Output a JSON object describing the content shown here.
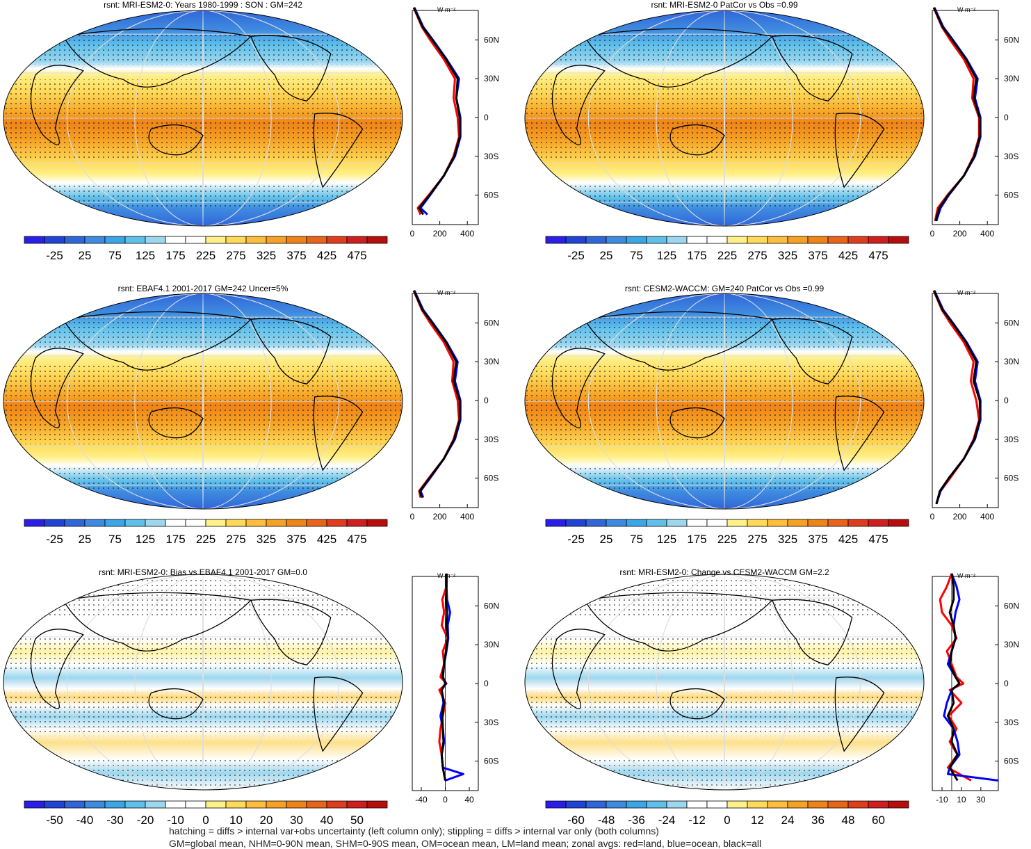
{
  "chart_data": [
    {
      "type": "heatmap",
      "title": "rsnt: MRI-ESM2-0: Years 1980-1999 : SON : GM=242",
      "colorbar_ticks": [
        "-25",
        "25",
        "75",
        "125",
        "175",
        "225",
        "275",
        "325",
        "375",
        "425",
        "475"
      ],
      "zonal_profile": {
        "unit": "W m-2",
        "x_ticks": [
          "0",
          "200",
          "400"
        ],
        "xlim": [
          0,
          480
        ],
        "y_ticks": [
          "60N",
          "30N",
          "0",
          "30S",
          "60S"
        ],
        "series": [
          {
            "color": "red",
            "lat": [
              85,
              70,
              60,
              45,
              30,
              15,
              0,
              -15,
              -30,
              -45,
              -60,
              -70,
              -75
            ],
            "values": [
              10,
              70,
              130,
              230,
              310,
              300,
              330,
              340,
              300,
              230,
              120,
              40,
              60
            ]
          },
          {
            "color": "blue",
            "lat": [
              85,
              70,
              60,
              45,
              30,
              15,
              0,
              -15,
              -30,
              -45,
              -60,
              -70,
              -75
            ],
            "values": [
              15,
              80,
              150,
              250,
              340,
              320,
              350,
              350,
              310,
              230,
              130,
              60,
              110
            ]
          },
          {
            "color": "black",
            "lat": [
              85,
              70,
              60,
              45,
              30,
              15,
              0,
              -15,
              -30,
              -45,
              -60,
              -70,
              -75
            ],
            "values": [
              12,
              75,
              145,
              245,
              330,
              320,
              345,
              345,
              305,
              230,
              125,
              50,
              80
            ]
          }
        ]
      }
    },
    {
      "type": "heatmap",
      "title": "rsnt: MRI-ESM2-0 PatCor vs Obs =0.99",
      "colorbar_ticks": [
        "-25",
        "25",
        "75",
        "125",
        "175",
        "225",
        "275",
        "325",
        "375",
        "425",
        "475"
      ],
      "zonal_profile": {
        "unit": "W m-2",
        "x_ticks": [
          "0",
          "200",
          "400"
        ],
        "xlim": [
          0,
          480
        ],
        "y_ticks": [
          "60N",
          "30N",
          "0",
          "30S",
          "60S"
        ],
        "series": [
          {
            "color": "red",
            "lat": [
              85,
              70,
              60,
              45,
              30,
              15,
              0,
              -15,
              -30,
              -45,
              -60,
              -70,
              -80
            ],
            "values": [
              10,
              70,
              130,
              230,
              300,
              290,
              340,
              340,
              300,
              230,
              110,
              40,
              20
            ]
          },
          {
            "color": "blue",
            "lat": [
              85,
              70,
              60,
              45,
              30,
              15,
              0,
              -15,
              -30,
              -45,
              -60,
              -70,
              -80
            ],
            "values": [
              15,
              80,
              150,
              250,
              330,
              310,
              350,
              350,
              310,
              230,
              120,
              60,
              30
            ]
          },
          {
            "color": "black",
            "lat": [
              85,
              70,
              60,
              45,
              30,
              15,
              0,
              -15,
              -30,
              -45,
              -60,
              -70,
              -80
            ],
            "values": [
              12,
              75,
              145,
              245,
              320,
              300,
              345,
              345,
              305,
              230,
              115,
              50,
              25
            ]
          }
        ]
      }
    },
    {
      "type": "heatmap",
      "title": "rsnt: EBAF4.1 2001-2017 GM=242 Uncer=5%",
      "colorbar_ticks": [
        "-25",
        "25",
        "75",
        "125",
        "175",
        "225",
        "275",
        "325",
        "375",
        "425",
        "475"
      ],
      "zonal_profile": {
        "unit": "W m-2",
        "x_ticks": [
          "0",
          "200",
          "400"
        ],
        "xlim": [
          0,
          480
        ],
        "y_ticks": [
          "60N",
          "30N",
          "0",
          "30S",
          "60S"
        ],
        "series": [
          {
            "color": "red",
            "lat": [
              85,
              70,
              60,
              45,
              30,
              15,
              0,
              -15,
              -30,
              -45,
              -60,
              -70,
              -75
            ],
            "values": [
              10,
              70,
              130,
              230,
              300,
              290,
              330,
              340,
              300,
              230,
              120,
              50,
              60
            ]
          },
          {
            "color": "blue",
            "lat": [
              85,
              70,
              60,
              45,
              30,
              15,
              0,
              -15,
              -30,
              -45,
              -60,
              -70,
              -75
            ],
            "values": [
              15,
              80,
              150,
              250,
              330,
              310,
              350,
              350,
              310,
              230,
              130,
              60,
              80
            ]
          },
          {
            "color": "black",
            "lat": [
              85,
              70,
              60,
              45,
              30,
              15,
              0,
              -15,
              -30,
              -45,
              -60,
              -70,
              -75
            ],
            "values": [
              12,
              75,
              145,
              245,
              320,
              300,
              345,
              345,
              305,
              230,
              125,
              55,
              70
            ]
          }
        ]
      }
    },
    {
      "type": "heatmap",
      "title": "rsnt: CESM2-WACCM: GM=240 PatCor vs Obs =0.99",
      "colorbar_ticks": [
        "-25",
        "25",
        "75",
        "125",
        "175",
        "225",
        "275",
        "325",
        "375",
        "425",
        "475"
      ],
      "zonal_profile": {
        "unit": "W m-2",
        "x_ticks": [
          "0",
          "200",
          "400"
        ],
        "xlim": [
          0,
          480
        ],
        "y_ticks": [
          "60N",
          "30N",
          "0",
          "30S",
          "60S"
        ],
        "series": [
          {
            "color": "red",
            "lat": [
              85,
              70,
              60,
              45,
              30,
              15,
              0,
              -15,
              -30,
              -45,
              -60,
              -70,
              -80
            ],
            "values": [
              10,
              70,
              130,
              230,
              300,
              280,
              320,
              340,
              300,
              230,
              130,
              60,
              30
            ]
          },
          {
            "color": "blue",
            "lat": [
              85,
              70,
              60,
              45,
              30,
              15,
              0,
              -15,
              -30,
              -45,
              -60,
              -70,
              -80
            ],
            "values": [
              15,
              80,
              150,
              250,
              330,
              310,
              350,
              350,
              310,
              230,
              120,
              60,
              30
            ]
          },
          {
            "color": "black",
            "lat": [
              85,
              70,
              60,
              45,
              30,
              15,
              0,
              -15,
              -30,
              -45,
              -60,
              -70,
              -80
            ],
            "values": [
              12,
              75,
              145,
              245,
              320,
              300,
              345,
              345,
              305,
              230,
              120,
              55,
              30
            ]
          }
        ]
      }
    },
    {
      "type": "heatmap",
      "title": "rsnt: MRI-ESM2-0: Bias vs EBAF4.1 2001-2017  GM=0.0",
      "colorbar_ticks": [
        "-50",
        "-40",
        "-30",
        "-20",
        "-10",
        "0",
        "10",
        "20",
        "30",
        "40",
        "50"
      ],
      "zonal_profile": {
        "unit": "W m-2",
        "x_ticks": [
          "-40",
          "0",
          "40"
        ],
        "xlim": [
          -55,
          55
        ],
        "y_ticks": [
          "60N",
          "30N",
          "0",
          "30S",
          "60S"
        ],
        "series": [
          {
            "color": "red",
            "lat": [
              85,
              75,
              65,
              55,
              45,
              35,
              25,
              15,
              5,
              0,
              -5,
              -15,
              -25,
              -35,
              -45,
              -55,
              -65,
              -75
            ],
            "values": [
              3,
              2,
              -5,
              -2,
              -6,
              4,
              -4,
              -2,
              -8,
              2,
              -10,
              0,
              -4,
              -8,
              -10,
              -6,
              -4,
              0
            ]
          },
          {
            "color": "blue",
            "lat": [
              85,
              75,
              65,
              55,
              45,
              35,
              25,
              15,
              5,
              0,
              -5,
              -15,
              -25,
              -35,
              -45,
              -55,
              -65,
              -70,
              -75
            ],
            "values": [
              1,
              2,
              3,
              8,
              4,
              5,
              2,
              -2,
              -4,
              0,
              -6,
              -3,
              -8,
              -4,
              -2,
              -6,
              -4,
              30,
              0
            ]
          },
          {
            "color": "black",
            "lat": [
              85,
              75,
              65,
              55,
              45,
              35,
              25,
              15,
              5,
              0,
              -5,
              -15,
              -25,
              -35,
              -45,
              -55,
              -65,
              -75
            ],
            "values": [
              2,
              2,
              1,
              3,
              2,
              4,
              1,
              -2,
              -4,
              1,
              -6,
              -2,
              -5,
              -4,
              -3,
              -6,
              -4,
              0
            ]
          }
        ]
      }
    },
    {
      "type": "heatmap",
      "title": "rsnt: MRI-ESM2-0: Change vs CESM2-WACCM GM=2.2",
      "colorbar_ticks": [
        "-60",
        "-48",
        "-36",
        "-24",
        "-12",
        "0",
        "12",
        "24",
        "36",
        "48",
        "60"
      ],
      "zonal_profile": {
        "unit": "W m-2",
        "x_ticks": [
          "-10",
          "10",
          "30"
        ],
        "xlim": [
          -20,
          48
        ],
        "y_ticks": [
          "60N",
          "30N",
          "0",
          "30S",
          "60S"
        ],
        "series": [
          {
            "color": "red",
            "lat": [
              85,
              75,
              65,
              55,
              45,
              35,
              25,
              15,
              5,
              0,
              -5,
              -15,
              -25,
              -35,
              -45,
              -55,
              -65,
              -75
            ],
            "values": [
              0,
              -5,
              -12,
              -10,
              0,
              5,
              -5,
              0,
              5,
              12,
              -2,
              10,
              -3,
              5,
              -2,
              6,
              -4,
              20
            ]
          },
          {
            "color": "blue",
            "lat": [
              85,
              75,
              65,
              55,
              45,
              35,
              25,
              15,
              5,
              0,
              -5,
              -15,
              -25,
              -35,
              -45,
              -55,
              -65,
              -70,
              -75
            ],
            "values": [
              0,
              5,
              8,
              4,
              2,
              4,
              0,
              -4,
              4,
              8,
              0,
              -5,
              -8,
              2,
              6,
              8,
              -2,
              -4,
              48
            ]
          },
          {
            "color": "black",
            "lat": [
              85,
              75,
              65,
              55,
              45,
              35,
              25,
              15,
              5,
              0,
              -5,
              -15,
              -25,
              -35,
              -45,
              -55,
              -65,
              -75
            ],
            "values": [
              0,
              2,
              2,
              -2,
              2,
              4,
              0,
              -2,
              4,
              8,
              0,
              2,
              -4,
              2,
              0,
              6,
              -2,
              6
            ]
          }
        ]
      }
    }
  ],
  "colorbar_colors": [
    "#2a1ee8",
    "#1f44d6",
    "#2f66d9",
    "#3f8be0",
    "#3aa6e6",
    "#5fc0ea",
    "#9dd7ef",
    "#ffffff",
    "#ffffff",
    "#fff08a",
    "#ffd958",
    "#fdbd3d",
    "#f5a124",
    "#ee8318",
    "#e8641a",
    "#e03d1f",
    "#d01d1d",
    "#b80d0d"
  ],
  "footnotes": {
    "line1": "hatching = diffs > internal var+obs uncertainty (left column only); stippling = diffs > internal var only (both columns)",
    "line2": "GM=global mean, NHM=0-90N mean, SHM=0-90S mean, OM=ocean mean, LM=land mean; zonal avgs: red=land, blue=ocean, black=all"
  }
}
